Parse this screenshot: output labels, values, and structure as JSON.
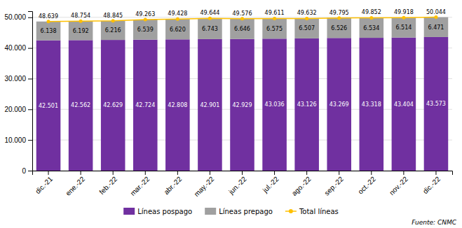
{
  "chart_data": {
    "type": "bar",
    "stacked": true,
    "data_labels": true,
    "grid": true,
    "legend": "bottom",
    "categories": [
      "dic.-21",
      "ene.-22",
      "feb.-22",
      "mar.-22",
      "abr.-22",
      "may.-22",
      "jun.-22",
      "jul.-22",
      "ago.-22",
      "sep.-22",
      "oct.-22",
      "nov.-22",
      "dic.-22"
    ],
    "series": [
      {
        "name": "Líneas pospago",
        "type": "bar",
        "color": "#7030a0",
        "values": [
          42501,
          42562,
          42629,
          42724,
          42808,
          42901,
          42929,
          43036,
          43126,
          43269,
          43318,
          43404,
          43573
        ],
        "value_labels": [
          "42.501",
          "42.562",
          "42.629",
          "42.724",
          "42.808",
          "42.901",
          "42.929",
          "43.036",
          "43.126",
          "43.269",
          "43.318",
          "43.404",
          "43.573"
        ]
      },
      {
        "name": "Líneas prepago",
        "type": "bar",
        "color": "#a0a0a0",
        "values": [
          6138,
          6192,
          6216,
          6539,
          6620,
          6743,
          6646,
          6575,
          6507,
          6526,
          6534,
          6514,
          6471
        ],
        "value_labels": [
          "6.138",
          "6.192",
          "6.216",
          "6.539",
          "6.620",
          "6.743",
          "6.646",
          "6.575",
          "6.507",
          "6.526",
          "6.534",
          "6.514",
          "6.471"
        ]
      },
      {
        "name": "Total líneas",
        "type": "line",
        "color": "#ffc000",
        "marker": "circle",
        "values": [
          48639,
          48754,
          48845,
          49263,
          49428,
          49644,
          49576,
          49611,
          49632,
          49795,
          49852,
          49918,
          50044
        ],
        "value_labels": [
          "48.639",
          "48.754",
          "48.845",
          "49.263",
          "49.428",
          "49.644",
          "49.576",
          "49.611",
          "49.632",
          "49.795",
          "49.852",
          "49.918",
          "50.044"
        ]
      }
    ],
    "ylim": [
      0,
      52000
    ],
    "yticks": [
      0,
      {
        "value": 10000,
        "label": "10.000"
      },
      {
        "value": 20000,
        "label": "20.000"
      },
      {
        "value": 30000,
        "label": "30.000"
      },
      {
        "value": 40000,
        "label": "40.000"
      },
      {
        "value": 50000,
        "label": "50.000"
      }
    ],
    "annotations": [
      "Fuente: CNMC"
    ]
  }
}
